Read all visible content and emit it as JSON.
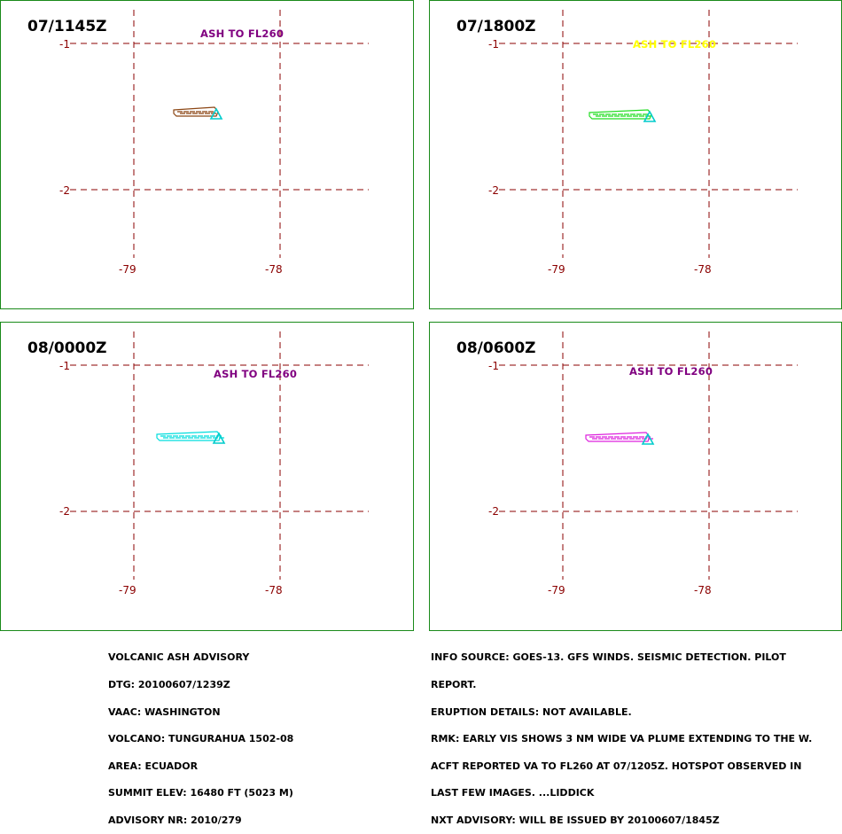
{
  "panels": [
    {
      "time": "07/1145Z",
      "annotation": "ASH TO FL260",
      "annotation_color": "#800080",
      "plume_color": "#8B4513"
    },
    {
      "time": "07/1800Z",
      "annotation": "ASH TO FL260",
      "annotation_color": "#FFFF00",
      "plume_color": "#22DD22"
    },
    {
      "time": "08/0000Z",
      "annotation": "ASH TO FL260",
      "annotation_color": "#800080",
      "plume_color": "#00DDDD"
    },
    {
      "time": "08/0600Z",
      "annotation": "ASH TO FL260",
      "annotation_color": "#800080",
      "plume_color": "#DD22DD"
    }
  ],
  "grid": {
    "lat_labels": [
      "-1",
      "-2"
    ],
    "lon_labels": [
      "-79",
      "-78"
    ],
    "grid_color": "#8B0000",
    "volcano_marker_color": "#00CCCC",
    "frame_color": "#1a8a1a"
  },
  "advisory_left": [
    "VOLCANIC ASH ADVISORY",
    "DTG: 20100607/1239Z",
    "VAAC: WASHINGTON",
    "VOLCANO: TUNGURAHUA 1502-08",
    "AREA: ECUADOR",
    "SUMMIT ELEV: 16480 FT (5023 M)",
    "ADVISORY NR: 2010/279"
  ],
  "advisory_right": [
    "INFO SOURCE: GOES-13. GFS WINDS. SEISMIC DETECTION. PILOT",
    "REPORT.",
    "ERUPTION DETAILS: NOT AVAILABLE.",
    "RMK: EARLY VIS SHOWS 3 NM WIDE VA PLUME EXTENDING TO THE W.",
    "ACFT REPORTED VA TO FL260 AT 07/1205Z. HOTSPOT OBSERVED IN",
    "LAST FEW IMAGES. ...LIDDICK",
    "NXT ADVISORY: WILL BE ISSUED BY 20100607/1845Z"
  ]
}
